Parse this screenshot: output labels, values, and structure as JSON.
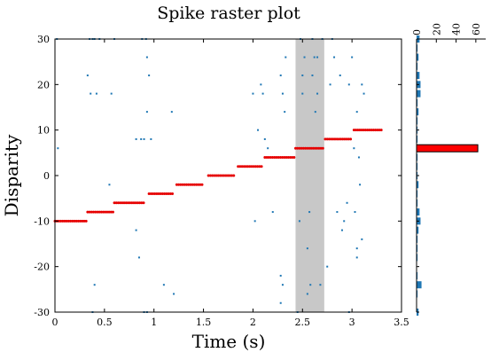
{
  "chart_data": [
    {
      "type": "scatter",
      "title": "Spike raster plot",
      "xlabel": "Time (s)",
      "ylabel": "Disparity",
      "xlim": [
        0,
        3.5
      ],
      "ylim": [
        -30,
        30
      ],
      "xticks": [
        "0",
        "0.5",
        "1",
        "1.5",
        "2",
        "2.5",
        "3",
        "3.5"
      ],
      "yticks": [
        "30",
        "20",
        "10",
        "0",
        "-10",
        "-20",
        "-30"
      ],
      "grid": false,
      "highlight_band": {
        "x_start": 2.43,
        "x_end": 2.72,
        "color": "#c8c8c8"
      },
      "colors": {
        "stimulus": "#e60000",
        "spikes": "#1f77b4"
      },
      "stimulus_segments": [
        {
          "t0": 0.0,
          "t1": 0.32,
          "disparity": -10
        },
        {
          "t0": 0.33,
          "t1": 0.6,
          "disparity": -8
        },
        {
          "t0": 0.6,
          "t1": 0.9,
          "disparity": -6
        },
        {
          "t0": 0.95,
          "t1": 1.2,
          "disparity": -4
        },
        {
          "t0": 1.23,
          "t1": 1.5,
          "disparity": -2
        },
        {
          "t0": 1.55,
          "t1": 1.82,
          "disparity": 0
        },
        {
          "t0": 1.85,
          "t1": 2.1,
          "disparity": 2
        },
        {
          "t0": 2.12,
          "t1": 2.42,
          "disparity": 4
        },
        {
          "t0": 2.43,
          "t1": 2.72,
          "disparity": 6
        },
        {
          "t0": 2.73,
          "t1": 3.0,
          "disparity": 8
        },
        {
          "t0": 3.02,
          "t1": 3.3,
          "disparity": 10
        }
      ],
      "spikes": [
        [
          0.02,
          30
        ],
        [
          0.03,
          6
        ],
        [
          0.33,
          22
        ],
        [
          0.35,
          30
        ],
        [
          0.36,
          18
        ],
        [
          0.38,
          30
        ],
        [
          0.4,
          30
        ],
        [
          0.42,
          18
        ],
        [
          0.38,
          -30
        ],
        [
          0.4,
          -24
        ],
        [
          0.45,
          30
        ],
        [
          0.55,
          -2
        ],
        [
          0.57,
          18
        ],
        [
          0.6,
          30
        ],
        [
          0.82,
          -12
        ],
        [
          0.85,
          -18
        ],
        [
          0.82,
          8
        ],
        [
          0.87,
          8
        ],
        [
          0.88,
          30
        ],
        [
          0.9,
          8
        ],
        [
          0.92,
          30
        ],
        [
          0.93,
          26
        ],
        [
          0.93,
          14
        ],
        [
          0.95,
          22
        ],
        [
          0.97,
          8
        ],
        [
          0.9,
          -30
        ],
        [
          0.93,
          -30
        ],
        [
          1.1,
          -24
        ],
        [
          1.2,
          -26
        ],
        [
          1.18,
          14
        ],
        [
          2.0,
          18
        ],
        [
          2.02,
          -10
        ],
        [
          2.05,
          10
        ],
        [
          2.08,
          20
        ],
        [
          2.1,
          18
        ],
        [
          2.12,
          8
        ],
        [
          2.15,
          6
        ],
        [
          2.2,
          -8
        ],
        [
          2.25,
          4
        ],
        [
          2.28,
          -22
        ],
        [
          2.3,
          -24
        ],
        [
          2.28,
          -28
        ],
        [
          2.28,
          22
        ],
        [
          2.3,
          18
        ],
        [
          2.32,
          14
        ],
        [
          2.33,
          26
        ],
        [
          2.45,
          -30
        ],
        [
          2.47,
          -10
        ],
        [
          2.48,
          30
        ],
        [
          2.5,
          18
        ],
        [
          2.52,
          26
        ],
        [
          2.5,
          22
        ],
        [
          2.55,
          -26
        ],
        [
          2.55,
          -16
        ],
        [
          2.57,
          -8
        ],
        [
          2.58,
          -24
        ],
        [
          2.6,
          30
        ],
        [
          2.6,
          22
        ],
        [
          2.62,
          26
        ],
        [
          2.63,
          14
        ],
        [
          2.65,
          18
        ],
        [
          2.65,
          26
        ],
        [
          2.68,
          -24
        ],
        [
          2.7,
          30
        ],
        [
          2.75,
          -20
        ],
        [
          2.78,
          20
        ],
        [
          2.8,
          30
        ],
        [
          2.82,
          26
        ],
        [
          2.85,
          -8
        ],
        [
          2.88,
          22
        ],
        [
          2.9,
          -12
        ],
        [
          2.92,
          -10
        ],
        [
          2.95,
          -6
        ],
        [
          2.97,
          20
        ],
        [
          2.97,
          -30
        ],
        [
          3.0,
          26
        ],
        [
          3.02,
          6
        ],
        [
          3.03,
          -8
        ],
        [
          3.05,
          14
        ],
        [
          3.05,
          -16
        ],
        [
          3.07,
          4
        ],
        [
          3.08,
          -2
        ],
        [
          3.1,
          20
        ],
        [
          3.12,
          18
        ],
        [
          3.1,
          -14
        ],
        [
          3.05,
          -18
        ]
      ]
    },
    {
      "type": "bar",
      "orientation": "horizontal",
      "categories": [
        -30,
        -28,
        -26,
        -24,
        -22,
        -20,
        -18,
        -16,
        -14,
        -12,
        -10,
        -8,
        -6,
        -4,
        -2,
        0,
        2,
        4,
        6,
        8,
        10,
        12,
        14,
        16,
        18,
        20,
        22,
        24,
        26,
        28,
        30
      ],
      "values": [
        2,
        0,
        1,
        5,
        1,
        0,
        1,
        1,
        1,
        2,
        4,
        3,
        1,
        1,
        2,
        1,
        1,
        1,
        62,
        1,
        1,
        1,
        2,
        1,
        4,
        4,
        3,
        1,
        2,
        1,
        3
      ],
      "xticks": [
        "0",
        "20",
        "40",
        "60"
      ],
      "xlim": [
        0,
        70
      ],
      "highlight": {
        "category": 6,
        "color": "#ff0000"
      },
      "color": "#1f77b4"
    }
  ]
}
